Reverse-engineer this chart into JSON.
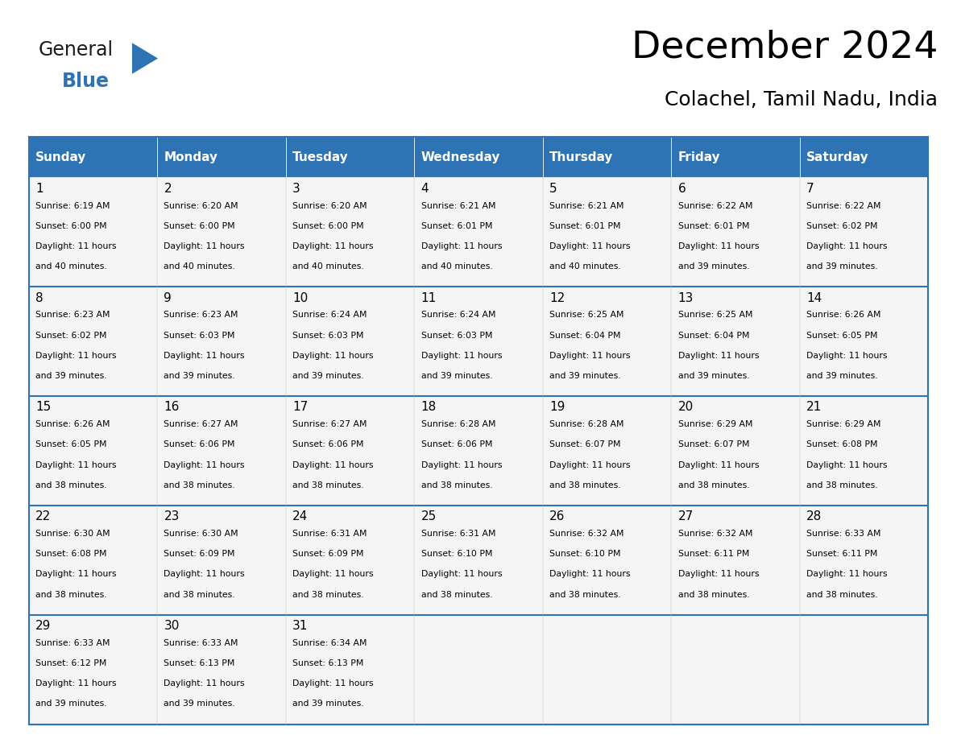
{
  "title": "December 2024",
  "subtitle": "Colachel, Tamil Nadu, India",
  "header_color": "#2E74B5",
  "header_text_color": "#FFFFFF",
  "cell_bg_color": "#F5F5F5",
  "border_color": "#2E74B5",
  "text_color": "#000000",
  "days_of_week": [
    "Sunday",
    "Monday",
    "Tuesday",
    "Wednesday",
    "Thursday",
    "Friday",
    "Saturday"
  ],
  "calendar_data": [
    [
      {
        "day": 1,
        "sunrise": "6:19 AM",
        "sunset": "6:00 PM",
        "daylight_line1": "Daylight: 11 hours",
        "daylight_line2": "and 40 minutes."
      },
      {
        "day": 2,
        "sunrise": "6:20 AM",
        "sunset": "6:00 PM",
        "daylight_line1": "Daylight: 11 hours",
        "daylight_line2": "and 40 minutes."
      },
      {
        "day": 3,
        "sunrise": "6:20 AM",
        "sunset": "6:00 PM",
        "daylight_line1": "Daylight: 11 hours",
        "daylight_line2": "and 40 minutes."
      },
      {
        "day": 4,
        "sunrise": "6:21 AM",
        "sunset": "6:01 PM",
        "daylight_line1": "Daylight: 11 hours",
        "daylight_line2": "and 40 minutes."
      },
      {
        "day": 5,
        "sunrise": "6:21 AM",
        "sunset": "6:01 PM",
        "daylight_line1": "Daylight: 11 hours",
        "daylight_line2": "and 40 minutes."
      },
      {
        "day": 6,
        "sunrise": "6:22 AM",
        "sunset": "6:01 PM",
        "daylight_line1": "Daylight: 11 hours",
        "daylight_line2": "and 39 minutes."
      },
      {
        "day": 7,
        "sunrise": "6:22 AM",
        "sunset": "6:02 PM",
        "daylight_line1": "Daylight: 11 hours",
        "daylight_line2": "and 39 minutes."
      }
    ],
    [
      {
        "day": 8,
        "sunrise": "6:23 AM",
        "sunset": "6:02 PM",
        "daylight_line1": "Daylight: 11 hours",
        "daylight_line2": "and 39 minutes."
      },
      {
        "day": 9,
        "sunrise": "6:23 AM",
        "sunset": "6:03 PM",
        "daylight_line1": "Daylight: 11 hours",
        "daylight_line2": "and 39 minutes."
      },
      {
        "day": 10,
        "sunrise": "6:24 AM",
        "sunset": "6:03 PM",
        "daylight_line1": "Daylight: 11 hours",
        "daylight_line2": "and 39 minutes."
      },
      {
        "day": 11,
        "sunrise": "6:24 AM",
        "sunset": "6:03 PM",
        "daylight_line1": "Daylight: 11 hours",
        "daylight_line2": "and 39 minutes."
      },
      {
        "day": 12,
        "sunrise": "6:25 AM",
        "sunset": "6:04 PM",
        "daylight_line1": "Daylight: 11 hours",
        "daylight_line2": "and 39 minutes."
      },
      {
        "day": 13,
        "sunrise": "6:25 AM",
        "sunset": "6:04 PM",
        "daylight_line1": "Daylight: 11 hours",
        "daylight_line2": "and 39 minutes."
      },
      {
        "day": 14,
        "sunrise": "6:26 AM",
        "sunset": "6:05 PM",
        "daylight_line1": "Daylight: 11 hours",
        "daylight_line2": "and 39 minutes."
      }
    ],
    [
      {
        "day": 15,
        "sunrise": "6:26 AM",
        "sunset": "6:05 PM",
        "daylight_line1": "Daylight: 11 hours",
        "daylight_line2": "and 38 minutes."
      },
      {
        "day": 16,
        "sunrise": "6:27 AM",
        "sunset": "6:06 PM",
        "daylight_line1": "Daylight: 11 hours",
        "daylight_line2": "and 38 minutes."
      },
      {
        "day": 17,
        "sunrise": "6:27 AM",
        "sunset": "6:06 PM",
        "daylight_line1": "Daylight: 11 hours",
        "daylight_line2": "and 38 minutes."
      },
      {
        "day": 18,
        "sunrise": "6:28 AM",
        "sunset": "6:06 PM",
        "daylight_line1": "Daylight: 11 hours",
        "daylight_line2": "and 38 minutes."
      },
      {
        "day": 19,
        "sunrise": "6:28 AM",
        "sunset": "6:07 PM",
        "daylight_line1": "Daylight: 11 hours",
        "daylight_line2": "and 38 minutes."
      },
      {
        "day": 20,
        "sunrise": "6:29 AM",
        "sunset": "6:07 PM",
        "daylight_line1": "Daylight: 11 hours",
        "daylight_line2": "and 38 minutes."
      },
      {
        "day": 21,
        "sunrise": "6:29 AM",
        "sunset": "6:08 PM",
        "daylight_line1": "Daylight: 11 hours",
        "daylight_line2": "and 38 minutes."
      }
    ],
    [
      {
        "day": 22,
        "sunrise": "6:30 AM",
        "sunset": "6:08 PM",
        "daylight_line1": "Daylight: 11 hours",
        "daylight_line2": "and 38 minutes."
      },
      {
        "day": 23,
        "sunrise": "6:30 AM",
        "sunset": "6:09 PM",
        "daylight_line1": "Daylight: 11 hours",
        "daylight_line2": "and 38 minutes."
      },
      {
        "day": 24,
        "sunrise": "6:31 AM",
        "sunset": "6:09 PM",
        "daylight_line1": "Daylight: 11 hours",
        "daylight_line2": "and 38 minutes."
      },
      {
        "day": 25,
        "sunrise": "6:31 AM",
        "sunset": "6:10 PM",
        "daylight_line1": "Daylight: 11 hours",
        "daylight_line2": "and 38 minutes."
      },
      {
        "day": 26,
        "sunrise": "6:32 AM",
        "sunset": "6:10 PM",
        "daylight_line1": "Daylight: 11 hours",
        "daylight_line2": "and 38 minutes."
      },
      {
        "day": 27,
        "sunrise": "6:32 AM",
        "sunset": "6:11 PM",
        "daylight_line1": "Daylight: 11 hours",
        "daylight_line2": "and 38 minutes."
      },
      {
        "day": 28,
        "sunrise": "6:33 AM",
        "sunset": "6:11 PM",
        "daylight_line1": "Daylight: 11 hours",
        "daylight_line2": "and 38 minutes."
      }
    ],
    [
      {
        "day": 29,
        "sunrise": "6:33 AM",
        "sunset": "6:12 PM",
        "daylight_line1": "Daylight: 11 hours",
        "daylight_line2": "and 39 minutes."
      },
      {
        "day": 30,
        "sunrise": "6:33 AM",
        "sunset": "6:13 PM",
        "daylight_line1": "Daylight: 11 hours",
        "daylight_line2": "and 39 minutes."
      },
      {
        "day": 31,
        "sunrise": "6:34 AM",
        "sunset": "6:13 PM",
        "daylight_line1": "Daylight: 11 hours",
        "daylight_line2": "and 39 minutes."
      },
      null,
      null,
      null,
      null
    ]
  ],
  "logo_general_color": "#1A1A1A",
  "logo_blue_color": "#2E74B5"
}
